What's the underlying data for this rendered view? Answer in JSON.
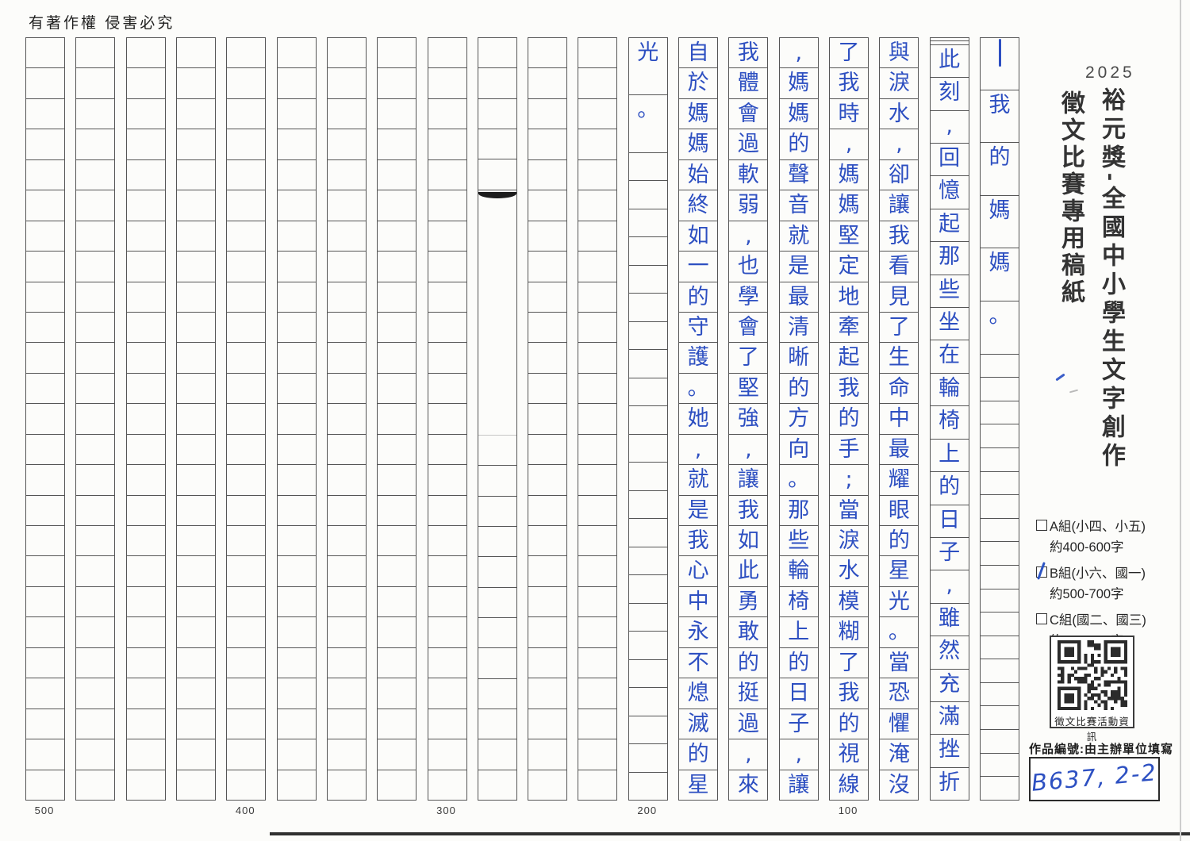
{
  "page": {
    "copyright": "有著作權 侵害必究"
  },
  "panel": {
    "year": "2025",
    "title": "裕元獎-全國中小學生文字創作",
    "subtitle": "徵文比賽專用稿紙",
    "groups": [
      {
        "label": "A組(小四、小五)",
        "range": "約400-600字",
        "checked": false
      },
      {
        "label": "B組(小六、國一)",
        "range": "約500-700字",
        "checked": true
      },
      {
        "label": "C組(國二、國三)",
        "range": "約600-800字",
        "checked": false
      }
    ],
    "qr_caption": "徵文比賽活動資訊",
    "entry_label": "作品編號:由主辦單位填寫",
    "entry_number": "B637, 2-2"
  },
  "manuscript": {
    "grid": {
      "columns": 20,
      "rows": 25
    },
    "columns_rtl": [
      "—我的媽媽。",
      "  此刻,回憶起那些坐在輪椅上的日子,雖然充滿挫折",
      "與淚水,卻讓我看見了生命中最耀眼的星光。當恐懼淹沒",
      "了我時,媽媽堅定地牽起我的手;當淚水模糊了我的視線",
      ",媽媽的聲音就是最清晰的方向。那些輪椅上的日子,讓",
      "我體會過軟弱,也學會了堅強,讓我如此勇敢的挺過,來",
      "自於媽媽始終如一的守護。她,就是我心中永不熄滅的星",
      "光。",
      "",
      "",
      "",
      "",
      "",
      "",
      "",
      "",
      "",
      "",
      "",
      ""
    ],
    "counters": [
      "500",
      "400",
      "300",
      "200",
      "100"
    ]
  },
  "colors": {
    "ink": "#2d4fc1",
    "grid_line": "#555555",
    "print_text": "#333333"
  }
}
